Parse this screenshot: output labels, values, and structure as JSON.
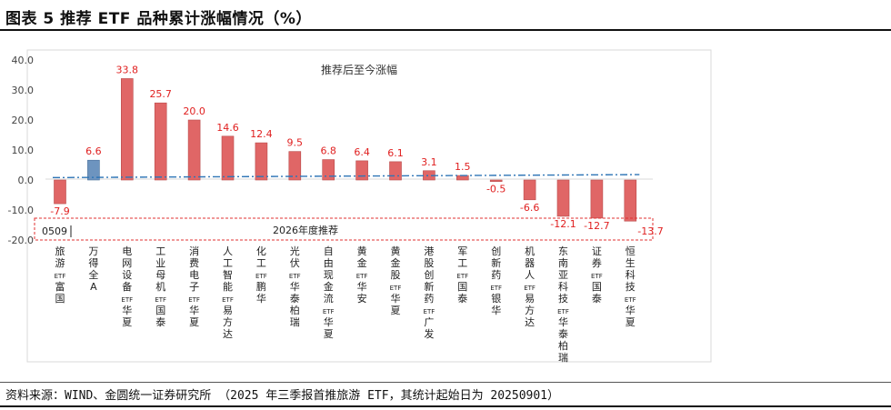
{
  "page": {
    "figure_title": "图表 5  推荐 ETF 品种累计涨幅情况（%）",
    "source_note": "资料来源：WIND、金圆统一证券研究所 （2025 年三季报首推旅游 ETF，其统计起始日为 20250901）"
  },
  "chart_data": {
    "type": "bar",
    "title": "推荐后至今涨幅",
    "categories": [
      "旅游ETF富国",
      "万得全A",
      "电网设备ETF华夏",
      "工业母机ETF国泰",
      "消费电子ETF华夏",
      "人工智能ETF易方达",
      "化工ETF鹏华",
      "光伏ETF华泰柏瑞",
      "自由现金流ETF华夏",
      "黄金ETF华安",
      "黄金股ETF华夏",
      "港股创新药ETF广发",
      "军工ETF国泰",
      "创新药ETF银华",
      "机器人ETF易方达",
      "东南亚科技ETF华泰柏瑞",
      "证券ETF国泰",
      "恒生科技ETF华夏"
    ],
    "series": [
      {
        "values": [
          -7.9,
          6.6,
          33.8,
          25.7,
          20.0,
          14.6,
          12.4,
          9.5,
          6.8,
          6.4,
          6.1,
          3.1,
          1.5,
          -0.5,
          -6.6,
          -12.1,
          -12.7,
          -13.7
        ],
        "data_labels": [
          "-7.9",
          "6.6",
          "33.8",
          "25.7",
          "20.0",
          "14.6",
          "12.4",
          "9.5",
          "6.8",
          "6.4",
          "6.1",
          "3.1",
          "1.5",
          "-0.5",
          "-6.6",
          "-12.1",
          "-12.7",
          "-13.7"
        ]
      }
    ],
    "highlight_category_index": 1,
    "yticks": [
      "40.0",
      "30.0",
      "20.0",
      "10.0",
      "0.0",
      "-10.0",
      "-20.0"
    ],
    "ylim": [
      -20,
      40
    ],
    "trendline": {
      "style": "dash-dot",
      "start": 0.8,
      "end": 1.8
    },
    "annotations": {
      "box_label": "2026年度推荐",
      "tag": "0509"
    },
    "colors": {
      "bar": "#e06666",
      "highlight_bar": "#6d94bf",
      "label": "#e02020",
      "trend": "#2e75b6",
      "box": "#e03030"
    },
    "grid": false
  }
}
